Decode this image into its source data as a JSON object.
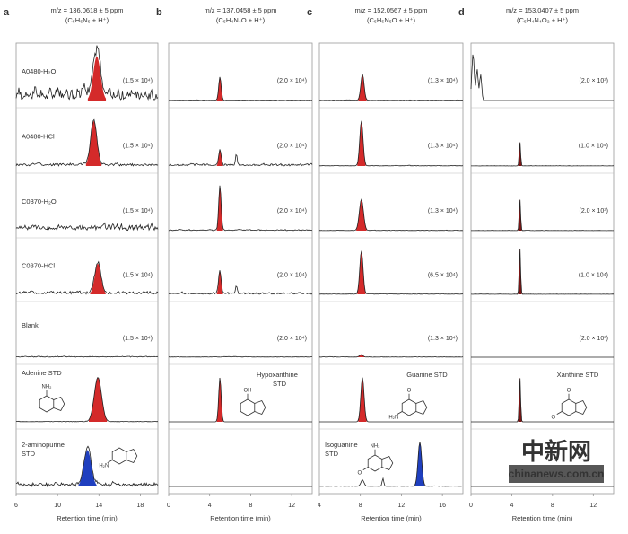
{
  "chart_data": {
    "type": "line",
    "xlabel": "Retention time (min)",
    "row_labels": [
      "A0480-H₂O",
      "A0480-HCl",
      "C0370-H₂O",
      "C0370-HCl",
      "Blank",
      "Adenine STD",
      "2-aminopurine STD"
    ],
    "panels": [
      {
        "letter": "a",
        "mz": "m/z = 136.0618 ± 5 ppm",
        "formula": "(C₅H₅N₅ + H⁺)",
        "xlim": [
          6,
          19.7
        ],
        "ticks": [
          6,
          10,
          14,
          18
        ],
        "rows": [
          {
            "scale": "(1.5 × 10⁴)",
            "noise": 0.25,
            "peaks": [
              {
                "t": 13.8,
                "h": 0.85,
                "w": 0.35,
                "color": "#d42a2a"
              }
            ]
          },
          {
            "scale": "(1.5 × 10⁴)",
            "noise": 0.05,
            "peaks": [
              {
                "t": 13.5,
                "h": 0.85,
                "w": 0.3,
                "color": "#d42a2a"
              }
            ]
          },
          {
            "scale": "(1.5 × 10⁴)",
            "noise": 0.12,
            "peaks": []
          },
          {
            "scale": "(1.5 × 10⁴)",
            "noise": 0.06,
            "peaks": [
              {
                "t": 13.9,
                "h": 0.6,
                "w": 0.3,
                "color": "#d42a2a"
              }
            ]
          },
          {
            "scale": "(1.5 × 10⁴)",
            "noise": 0.02,
            "peaks": []
          },
          {
            "scale": "",
            "noise": 0.01,
            "peaks": [
              {
                "t": 13.9,
                "h": 0.85,
                "w": 0.35,
                "color": "#d42a2a"
              }
            ],
            "compound": "",
            "structure": "adenine"
          },
          {
            "scale": "",
            "noise": 0.08,
            "peaks": [
              {
                "t": 12.9,
                "h": 0.7,
                "w": 0.35,
                "color": "#1f3fbf"
              }
            ],
            "structure": "2-aminopurine"
          }
        ]
      },
      {
        "letter": "b",
        "mz": "m/z = 137.0458 ± 5 ppm",
        "formula": "(C₅H₄N₄O + H⁺)",
        "xlim": [
          0,
          14
        ],
        "ticks": [
          0,
          4,
          8,
          12
        ],
        "rows": [
          {
            "scale": "(2.0 × 10⁴)",
            "noise": 0.01,
            "peaks": [
              {
                "t": 5.0,
                "h": 0.45,
                "w": 0.12,
                "color": "#d42a2a"
              }
            ]
          },
          {
            "scale": "(2.0 × 10⁴)",
            "noise": 0.04,
            "peaks": [
              {
                "t": 5.0,
                "h": 0.3,
                "w": 0.12,
                "color": "#d42a2a"
              },
              {
                "t": 6.6,
                "h": 0.22,
                "w": 0.08,
                "color": ""
              }
            ]
          },
          {
            "scale": "(2.0 × 10⁴)",
            "noise": 0.02,
            "peaks": [
              {
                "t": 5.0,
                "h": 0.85,
                "w": 0.12,
                "color": "#d42a2a"
              }
            ]
          },
          {
            "scale": "(2.0 × 10⁴)",
            "noise": 0.04,
            "peaks": [
              {
                "t": 5.0,
                "h": 0.45,
                "w": 0.12,
                "color": "#d42a2a"
              },
              {
                "t": 6.6,
                "h": 0.15,
                "w": 0.08,
                "color": ""
              }
            ]
          },
          {
            "scale": "(2.0 × 10⁴)",
            "noise": 0.01,
            "peaks": []
          },
          {
            "scale": "",
            "noise": 0.0,
            "peaks": [
              {
                "t": 5.0,
                "h": 0.85,
                "w": 0.12,
                "color": "#d42a2a"
              }
            ],
            "compound": "Hypoxanthine STD",
            "structure": "hypoxanthine"
          },
          {
            "scale": "",
            "noise": 0.0,
            "peaks": []
          }
        ]
      },
      {
        "letter": "c",
        "mz": "m/z = 152.0567 ± 5 ppm",
        "formula": "(C₅H₅N₅O + H⁺)",
        "xlim": [
          4,
          18
        ],
        "ticks": [
          4,
          8,
          12,
          16
        ],
        "rows": [
          {
            "scale": "(1.3 × 10⁴)",
            "noise": 0.01,
            "peaks": [
              {
                "t": 8.2,
                "h": 0.5,
                "w": 0.16,
                "color": "#d42a2a"
              }
            ]
          },
          {
            "scale": "(1.3 × 10⁴)",
            "noise": 0.01,
            "peaks": [
              {
                "t": 8.1,
                "h": 0.85,
                "w": 0.16,
                "color": "#d42a2a"
              }
            ]
          },
          {
            "scale": "(1.3 × 10⁴)",
            "noise": 0.01,
            "peaks": [
              {
                "t": 8.1,
                "h": 0.6,
                "w": 0.2,
                "color": "#d42a2a"
              }
            ]
          },
          {
            "scale": "(6.5 × 10⁴)",
            "noise": 0.01,
            "peaks": [
              {
                "t": 8.1,
                "h": 0.85,
                "w": 0.16,
                "color": "#d42a2a"
              }
            ]
          },
          {
            "scale": "(1.3 × 10⁴)",
            "noise": 0.01,
            "peaks": [
              {
                "t": 8.1,
                "h": 0.05,
                "w": 0.16,
                "color": "#d42a2a"
              }
            ]
          },
          {
            "scale": "",
            "noise": 0.0,
            "peaks": [
              {
                "t": 8.2,
                "h": 0.85,
                "w": 0.16,
                "color": "#d42a2a"
              }
            ],
            "compound": "Guanine STD",
            "structure": "guanine"
          },
          {
            "scale": "",
            "noise": 0.01,
            "peaks": [
              {
                "t": 8.2,
                "h": 0.12,
                "w": 0.15,
                "color": ""
              },
              {
                "t": 10.2,
                "h": 0.15,
                "w": 0.08,
                "color": ""
              },
              {
                "t": 13.8,
                "h": 0.85,
                "w": 0.18,
                "color": "#1f3fbf"
              }
            ],
            "compound": "Isoguanine STD",
            "structure": "isoguanine"
          }
        ]
      },
      {
        "letter": "d",
        "mz": "m/z = 153.0407 ± 5 ppm",
        "formula": "(C₅H₄N₄O₂ + H⁺)",
        "xlim": [
          0,
          14
        ],
        "ticks": [
          0,
          4,
          8,
          12
        ],
        "rows": [
          {
            "scale": "(2.0 × 10³)",
            "noise": 0.0,
            "peaks": [
              {
                "t": 0.2,
                "h": 0.9,
                "w": 0.12,
                "color": ""
              },
              {
                "t": 0.6,
                "h": 0.6,
                "w": 0.1,
                "color": ""
              },
              {
                "t": 0.95,
                "h": 0.5,
                "w": 0.1,
                "color": ""
              }
            ]
          },
          {
            "scale": "(1.0 × 10⁴)",
            "noise": 0.005,
            "peaks": [
              {
                "t": 4.8,
                "h": 0.45,
                "w": 0.07,
                "color": "#7a1414"
              }
            ]
          },
          {
            "scale": "(2.0 × 10³)",
            "noise": 0.005,
            "peaks": [
              {
                "t": 4.8,
                "h": 0.6,
                "w": 0.07,
                "color": "#7a1414"
              }
            ]
          },
          {
            "scale": "(1.0 × 10⁴)",
            "noise": 0.005,
            "peaks": [
              {
                "t": 4.8,
                "h": 0.9,
                "w": 0.07,
                "color": "#7a1414"
              }
            ]
          },
          {
            "scale": "(2.0 × 10³)",
            "noise": 0.0,
            "peaks": []
          },
          {
            "scale": "",
            "noise": 0.0,
            "peaks": [
              {
                "t": 4.8,
                "h": 0.85,
                "w": 0.07,
                "color": "#7a1414"
              }
            ],
            "compound": "Xanthine STD",
            "structure": "xanthine"
          },
          {
            "scale": "",
            "noise": 0.0,
            "peaks": []
          }
        ]
      }
    ]
  },
  "watermark": {
    "chinese": "中新网",
    "site": "chinanews.com.cn"
  }
}
